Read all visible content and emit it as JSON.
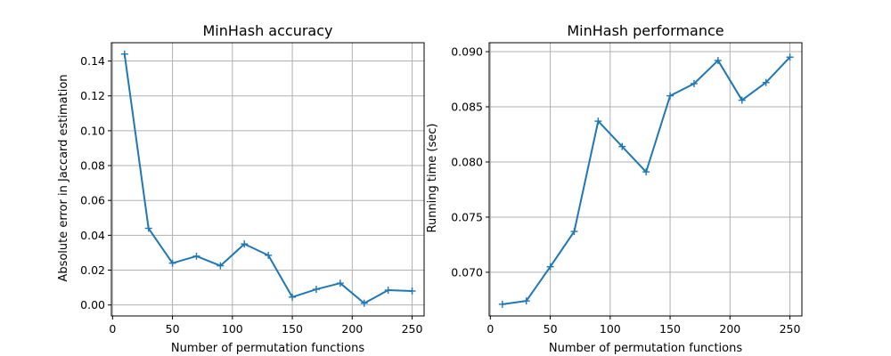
{
  "figure": {
    "colors": {
      "series": "#1f77b4",
      "grid": "#b0b0b0",
      "background": "#ffffff"
    }
  },
  "chart_data": [
    {
      "type": "line",
      "title": "MinHash accuracy",
      "xlabel": "Number of permutation functions",
      "ylabel": "Absolute error in Jaccard estimation",
      "xlim": [
        -1,
        260
      ],
      "ylim": [
        -0.0063,
        0.1505
      ],
      "xticks": [
        0,
        50,
        100,
        150,
        200,
        250
      ],
      "yticks": [
        0.0,
        0.02,
        0.04,
        0.06,
        0.08,
        0.1,
        0.12,
        0.14
      ],
      "xtick_labels": [
        "0",
        "50",
        "100",
        "150",
        "200",
        "250"
      ],
      "ytick_labels": [
        "0.00",
        "0.02",
        "0.04",
        "0.06",
        "0.08",
        "0.10",
        "0.12",
        "0.14"
      ],
      "grid": true,
      "marker": "+",
      "series": [
        {
          "x": [
            10,
            30,
            50,
            70,
            90,
            110,
            130,
            150,
            170,
            190,
            210,
            230,
            250
          ],
          "y": [
            0.144,
            0.044,
            0.024,
            0.028,
            0.0225,
            0.035,
            0.0285,
            0.0045,
            0.009,
            0.0125,
            0.001,
            0.0085,
            0.008
          ]
        }
      ]
    },
    {
      "type": "line",
      "title": "MinHash performance",
      "xlabel": "Number of permutation functions",
      "ylabel": "Running time (sec)",
      "xlim": [
        -1,
        260
      ],
      "ylim": [
        0.06604,
        0.09081
      ],
      "xticks": [
        0,
        50,
        100,
        150,
        200,
        250
      ],
      "yticks": [
        0.07,
        0.075,
        0.08,
        0.085,
        0.09
      ],
      "xtick_labels": [
        "0",
        "50",
        "100",
        "150",
        "200",
        "250"
      ],
      "ytick_labels": [
        "0.070",
        "0.075",
        "0.080",
        "0.085",
        "0.090"
      ],
      "grid": true,
      "marker": "+",
      "series": [
        {
          "x": [
            10,
            30,
            50,
            70,
            90,
            110,
            130,
            150,
            170,
            190,
            210,
            230,
            250
          ],
          "y": [
            0.0671,
            0.0674,
            0.0705,
            0.0737,
            0.0837,
            0.0814,
            0.0791,
            0.086,
            0.0871,
            0.0892,
            0.0856,
            0.0872,
            0.0895
          ]
        }
      ]
    }
  ]
}
